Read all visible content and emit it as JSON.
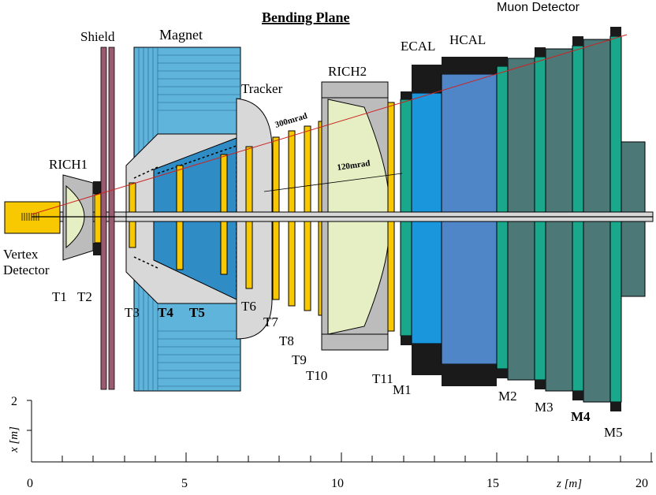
{
  "title": "Bending Plane",
  "components": {
    "shield": "Shield",
    "magnet": "Magnet",
    "tracker": "Tracker",
    "rich1": "RICH1",
    "rich2": "RICH2",
    "ecal": "ECAL",
    "hcal": "HCAL",
    "muon": "Muon Detector",
    "vertex_line1": "Vertex",
    "vertex_line2": "Detector"
  },
  "angles": {
    "a300": "300mrad",
    "a120": "120mrad"
  },
  "stations": {
    "T1": "T1",
    "T2": "T2",
    "T3": "T3",
    "T4": "T4",
    "T5": "T5",
    "T6": "T6",
    "T7": "T7",
    "T8": "T8",
    "T9": "T9",
    "T10": "T10",
    "T11": "T11",
    "M1": "M1",
    "M2": "M2",
    "M3": "M3",
    "M4": "M4",
    "M5": "M5"
  },
  "axes": {
    "xlabel": "x [m]",
    "xtick2": "2",
    "zlabel": "z [m]",
    "z0": "0",
    "z5": "5",
    "z10": "10",
    "z15": "15",
    "z20": "20"
  },
  "colors": {
    "magnet": "#5fb4dc",
    "magnet_dark": "#2f8cc4",
    "tracker_gray": "#d8d8d8",
    "yellow": "#f8c800",
    "rich_fill": "#e6eec4",
    "ecal": "#1a96dc",
    "hcal": "#4f86c8",
    "muon_dark": "#4d7878",
    "muon_green": "#1aa88c",
    "shield": "#9a5a70",
    "red_line": "#cc2222"
  }
}
